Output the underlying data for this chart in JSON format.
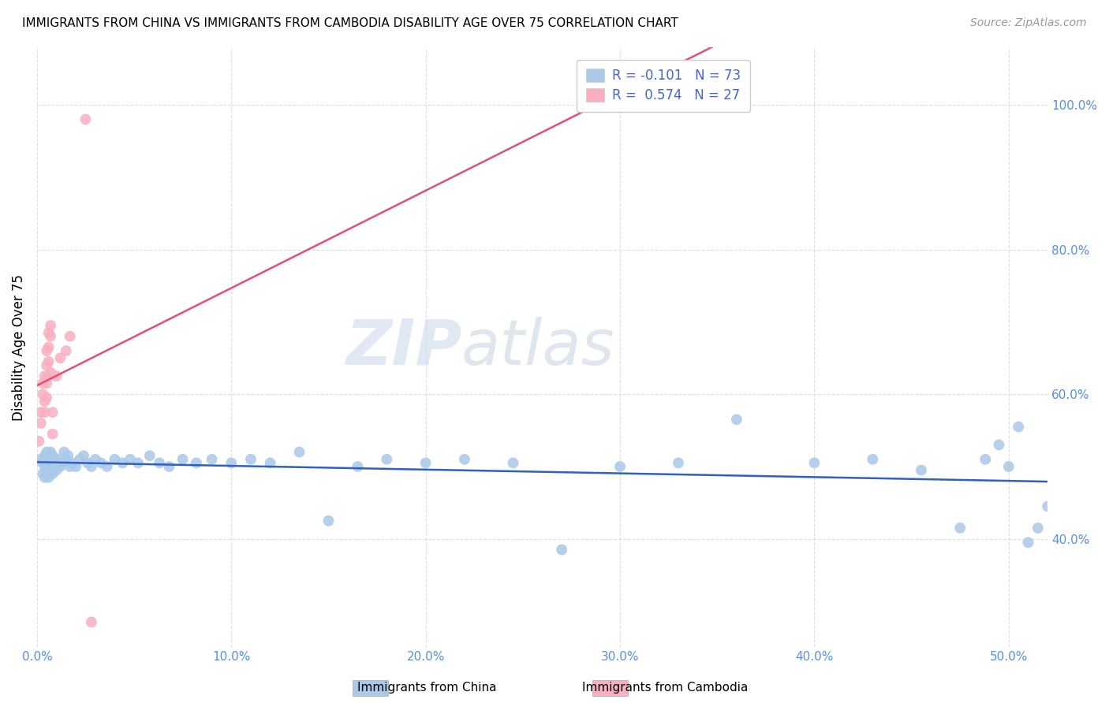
{
  "title": "IMMIGRANTS FROM CHINA VS IMMIGRANTS FROM CAMBODIA DISABILITY AGE OVER 75 CORRELATION CHART",
  "source": "Source: ZipAtlas.com",
  "ylabel": "Disability Age Over 75",
  "legend_label_china": "Immigrants from China",
  "legend_label_cambodia": "Immigrants from Cambodia",
  "R_china": -0.101,
  "N_china": 73,
  "R_cambodia": 0.574,
  "N_cambodia": 27,
  "x_ticks": [
    0.0,
    0.1,
    0.2,
    0.3,
    0.4,
    0.5
  ],
  "x_tick_labels": [
    "0.0%",
    "10.0%",
    "20.0%",
    "30.0%",
    "40.0%",
    "50.0%"
  ],
  "y_ticks": [
    0.4,
    0.6,
    0.8,
    1.0
  ],
  "y_tick_labels": [
    "40.0%",
    "60.0%",
    "80.0%",
    "100.0%"
  ],
  "xlim": [
    0.0,
    0.52
  ],
  "ylim": [
    0.25,
    1.08
  ],
  "color_china": "#aac8e8",
  "color_cambodia": "#f8b0c0",
  "line_color_china": "#3060c0",
  "line_color_cambodia": "#e05070",
  "watermark_zip": "ZIP",
  "watermark_atlas": "atlas",
  "china_x": [
    0.002,
    0.003,
    0.003,
    0.004,
    0.004,
    0.004,
    0.005,
    0.005,
    0.005,
    0.006,
    0.006,
    0.006,
    0.007,
    0.007,
    0.007,
    0.008,
    0.008,
    0.008,
    0.009,
    0.009,
    0.01,
    0.01,
    0.011,
    0.012,
    0.013,
    0.014,
    0.015,
    0.016,
    0.017,
    0.018,
    0.02,
    0.022,
    0.024,
    0.026,
    0.028,
    0.03,
    0.033,
    0.036,
    0.04,
    0.044,
    0.048,
    0.052,
    0.058,
    0.063,
    0.068,
    0.075,
    0.082,
    0.09,
    0.1,
    0.11,
    0.12,
    0.135,
    0.15,
    0.165,
    0.18,
    0.2,
    0.22,
    0.245,
    0.27,
    0.3,
    0.33,
    0.36,
    0.4,
    0.43,
    0.455,
    0.475,
    0.488,
    0.495,
    0.5,
    0.505,
    0.51,
    0.515,
    0.52
  ],
  "china_y": [
    0.51,
    0.505,
    0.49,
    0.515,
    0.5,
    0.485,
    0.52,
    0.505,
    0.49,
    0.515,
    0.5,
    0.485,
    0.52,
    0.51,
    0.495,
    0.515,
    0.5,
    0.49,
    0.51,
    0.5,
    0.505,
    0.495,
    0.51,
    0.5,
    0.505,
    0.52,
    0.51,
    0.515,
    0.5,
    0.505,
    0.5,
    0.51,
    0.515,
    0.505,
    0.5,
    0.51,
    0.505,
    0.5,
    0.51,
    0.505,
    0.51,
    0.505,
    0.515,
    0.505,
    0.5,
    0.51,
    0.505,
    0.51,
    0.505,
    0.51,
    0.505,
    0.52,
    0.425,
    0.5,
    0.51,
    0.505,
    0.51,
    0.505,
    0.385,
    0.5,
    0.505,
    0.565,
    0.505,
    0.51,
    0.495,
    0.415,
    0.51,
    0.53,
    0.5,
    0.555,
    0.395,
    0.415,
    0.445
  ],
  "cambodia_x": [
    0.001,
    0.002,
    0.002,
    0.003,
    0.003,
    0.004,
    0.004,
    0.004,
    0.005,
    0.005,
    0.005,
    0.005,
    0.006,
    0.006,
    0.006,
    0.006,
    0.007,
    0.007,
    0.007,
    0.008,
    0.008,
    0.01,
    0.012,
    0.015,
    0.017,
    0.025,
    0.028
  ],
  "cambodia_y": [
    0.535,
    0.56,
    0.575,
    0.6,
    0.615,
    0.575,
    0.59,
    0.625,
    0.595,
    0.615,
    0.64,
    0.66,
    0.625,
    0.645,
    0.665,
    0.685,
    0.63,
    0.68,
    0.695,
    0.575,
    0.545,
    0.625,
    0.65,
    0.66,
    0.68,
    0.98,
    0.285
  ]
}
